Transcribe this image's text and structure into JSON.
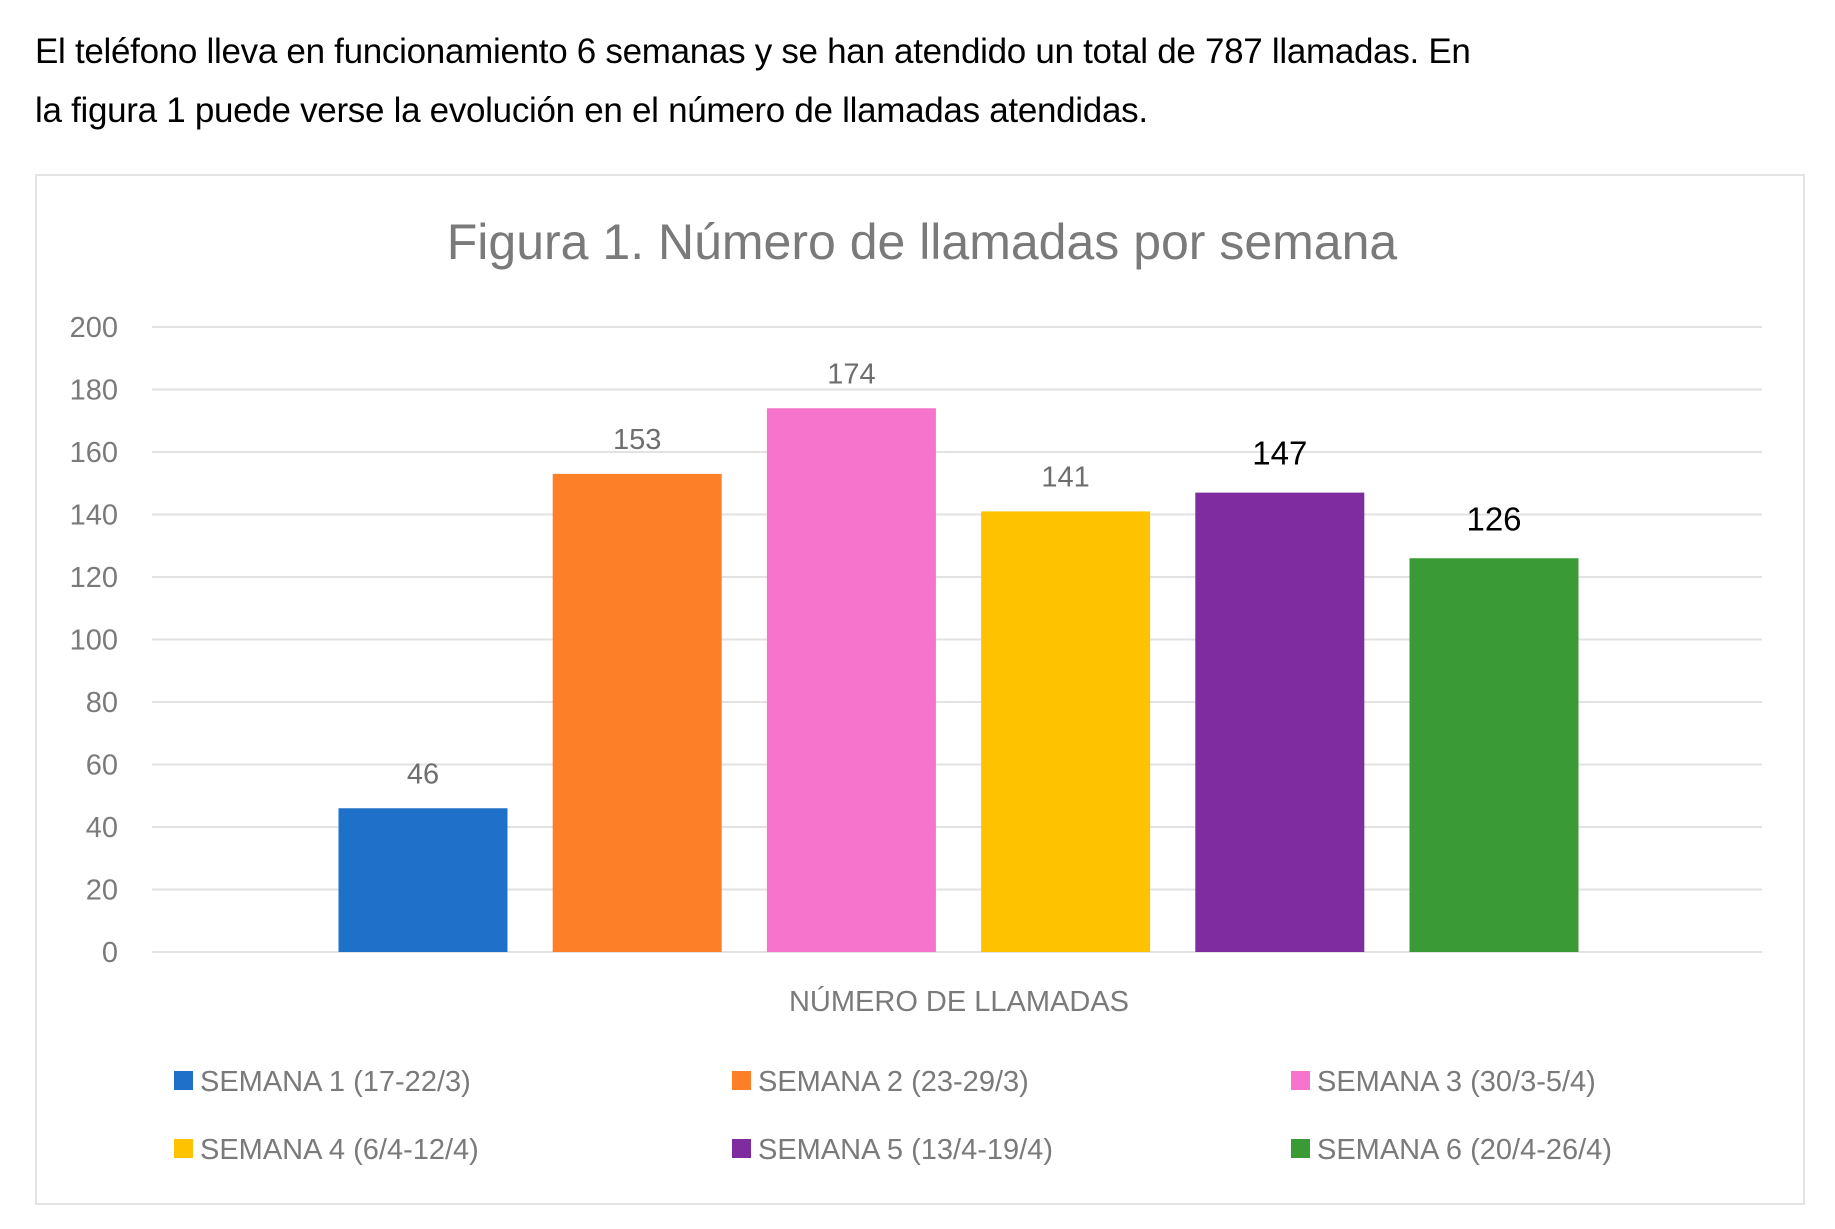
{
  "document": {
    "paragraph_lines": [
      "El teléfono lleva en funcionamiento 6 semanas y se han atendido un total de 787 llamadas. En",
      "la figura 1 puede verse la evolución en el número de llamadas atendidas."
    ]
  },
  "chart_data": {
    "type": "bar",
    "title": "Figura 1. Número de llamadas por semana",
    "xlabel": "NÚMERO DE LLAMADAS",
    "ylabel": "",
    "ylim": [
      0,
      200
    ],
    "yticks": [
      0,
      20,
      40,
      60,
      80,
      100,
      120,
      140,
      160,
      180,
      200
    ],
    "grid": true,
    "legend_position": "bottom",
    "categories": [
      "NÚMERO DE LLAMADAS"
    ],
    "series": [
      {
        "name": "SEMANA 1 (17-22/3)",
        "values": [
          46
        ],
        "color": "#1F70C8",
        "label_emphasis": false
      },
      {
        "name": "SEMANA 2 (23-29/3)",
        "values": [
          153
        ],
        "color": "#FD7F28",
        "label_emphasis": false
      },
      {
        "name": "SEMANA 3 (30/3-5/4)",
        "values": [
          174
        ],
        "color": "#F674CC",
        "label_emphasis": false
      },
      {
        "name": "SEMANA 4 (6/4-12/4)",
        "values": [
          141
        ],
        "color": "#FEC200",
        "label_emphasis": false
      },
      {
        "name": "SEMANA 5 (13/4-19/4)",
        "values": [
          147
        ],
        "color": "#7F2CA0",
        "label_emphasis": true
      },
      {
        "name": "SEMANA 6 (20/4-26/4)",
        "values": [
          126
        ],
        "color": "#3A9A35",
        "label_emphasis": true
      }
    ]
  }
}
